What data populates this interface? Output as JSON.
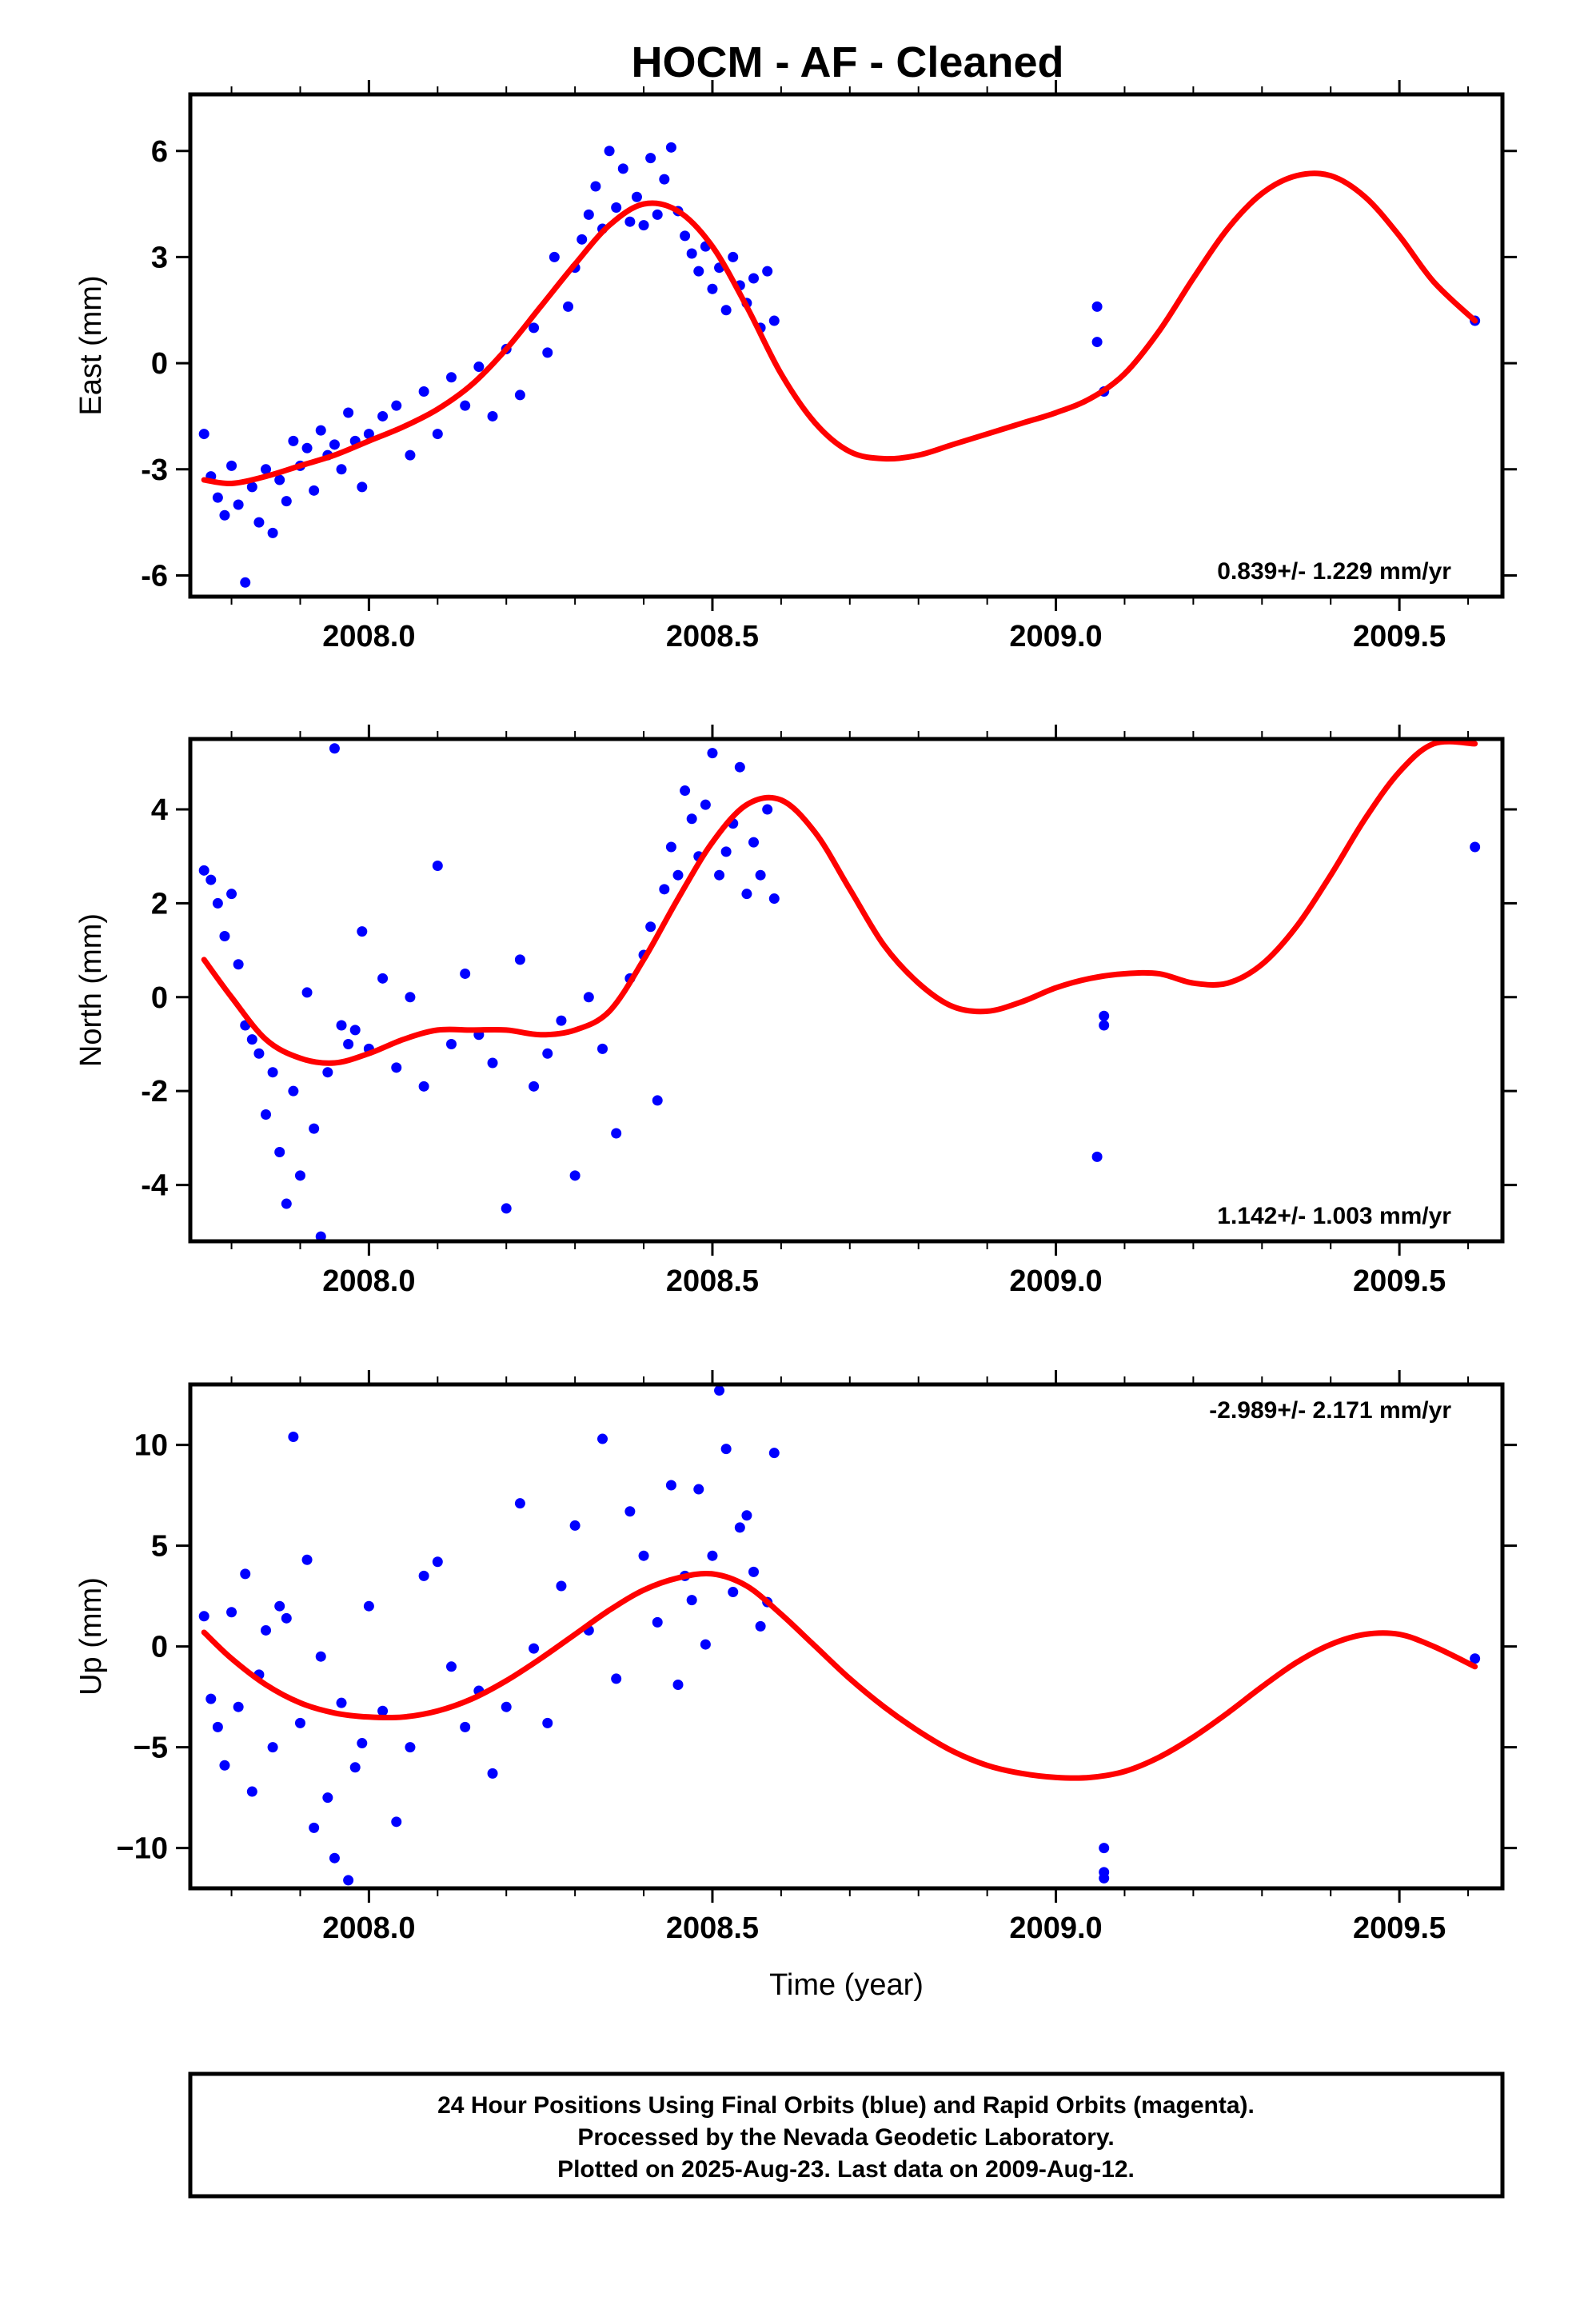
{
  "title": "HOCM  - AF - Cleaned",
  "footer": {
    "line1": "24 Hour Positions Using Final Orbits (blue) and Rapid Orbits (magenta).",
    "line2": "Processed by the Nevada Geodetic Laboratory.",
    "line3": "Plotted on 2025-Aug-23. Last data on 2009-Aug-12."
  },
  "colors": {
    "points": "#0000ff",
    "fit": "#ff0000",
    "axes": "#000000"
  },
  "chart_data": [
    {
      "type": "scatter",
      "title": "HOCM  - AF - Cleaned",
      "xlabel": "",
      "ylabel": "East (mm)",
      "xlim": [
        2007.74,
        2009.65
      ],
      "ylim": [
        -6.6,
        7.6
      ],
      "xticks": [
        2008.0,
        2008.5,
        2009.0,
        2009.5
      ],
      "xtick_labels": [
        "2008.0",
        "2008.5",
        "2009.0",
        "2009.5"
      ],
      "yticks": [
        -6,
        -3,
        0,
        3,
        6
      ],
      "ytick_labels": [
        "-6",
        "-3",
        "0",
        "3",
        "6"
      ],
      "rate_label": "0.839+/- 1.229 mm/yr",
      "series": [
        {
          "kind": "points",
          "x": [
            2007.76,
            2007.77,
            2007.78,
            2007.79,
            2007.8,
            2007.81,
            2007.82,
            2007.83,
            2007.84,
            2007.85,
            2007.86,
            2007.87,
            2007.88,
            2007.89,
            2007.9,
            2007.91,
            2007.92,
            2007.93,
            2007.94,
            2007.95,
            2007.96,
            2007.97,
            2007.98,
            2007.99,
            2008.0,
            2008.02,
            2008.04,
            2008.06,
            2008.08,
            2008.1,
            2008.12,
            2008.14,
            2008.16,
            2008.18,
            2008.2,
            2008.22,
            2008.24,
            2008.26,
            2008.27,
            2008.29,
            2008.3,
            2008.31,
            2008.32,
            2008.33,
            2008.34,
            2008.35,
            2008.36,
            2008.37,
            2008.38,
            2008.39,
            2008.4,
            2008.41,
            2008.42,
            2008.43,
            2008.44,
            2008.45,
            2008.46,
            2008.47,
            2008.48,
            2008.49,
            2008.5,
            2008.51,
            2008.52,
            2008.53,
            2008.54,
            2008.55,
            2008.56,
            2008.57,
            2008.58,
            2008.59,
            2009.06,
            2009.06,
            2009.07,
            2009.61
          ],
          "y": [
            -2.0,
            -3.2,
            -3.8,
            -4.3,
            -2.9,
            -4.0,
            -6.2,
            -3.5,
            -4.5,
            -3.0,
            -4.8,
            -3.3,
            -3.9,
            -2.2,
            -2.9,
            -2.4,
            -3.6,
            -1.9,
            -2.6,
            -2.3,
            -3.0,
            -1.4,
            -2.2,
            -3.5,
            -2.0,
            -1.5,
            -1.2,
            -2.6,
            -0.8,
            -2.0,
            -0.4,
            -1.2,
            -0.1,
            -1.5,
            0.4,
            -0.9,
            1.0,
            0.3,
            3.0,
            1.6,
            2.7,
            3.5,
            4.2,
            5.0,
            3.8,
            6.0,
            4.4,
            5.5,
            4.0,
            4.7,
            3.9,
            5.8,
            4.2,
            5.2,
            6.1,
            4.3,
            3.6,
            3.1,
            2.6,
            3.3,
            2.1,
            2.7,
            1.5,
            3.0,
            2.2,
            1.7,
            2.4,
            1.0,
            2.6,
            1.2,
            0.6,
            1.6,
            -0.8,
            1.2
          ]
        },
        {
          "kind": "fit",
          "x": [
            2007.76,
            2007.8,
            2007.85,
            2007.9,
            2007.95,
            2008.0,
            2008.05,
            2008.1,
            2008.15,
            2008.2,
            2008.25,
            2008.3,
            2008.35,
            2008.4,
            2008.45,
            2008.5,
            2008.55,
            2008.6,
            2008.65,
            2008.7,
            2008.75,
            2008.8,
            2008.85,
            2008.9,
            2008.95,
            2009.0,
            2009.05,
            2009.1,
            2009.15,
            2009.2,
            2009.25,
            2009.3,
            2009.35,
            2009.4,
            2009.45,
            2009.5,
            2009.55,
            2009.61
          ],
          "y": [
            -3.3,
            -3.4,
            -3.2,
            -2.9,
            -2.6,
            -2.2,
            -1.8,
            -1.3,
            -0.6,
            0.4,
            1.6,
            2.8,
            3.9,
            4.5,
            4.3,
            3.3,
            1.6,
            -0.3,
            -1.7,
            -2.5,
            -2.7,
            -2.6,
            -2.3,
            -2.0,
            -1.7,
            -1.4,
            -1.0,
            -0.3,
            0.9,
            2.4,
            3.8,
            4.8,
            5.3,
            5.3,
            4.7,
            3.6,
            2.3,
            1.2
          ]
        }
      ]
    },
    {
      "type": "scatter",
      "xlabel": "",
      "ylabel": "North (mm)",
      "xlim": [
        2007.74,
        2009.65
      ],
      "ylim": [
        -5.2,
        5.5
      ],
      "xticks": [
        2008.0,
        2008.5,
        2009.0,
        2009.5
      ],
      "xtick_labels": [
        "2008.0",
        "2008.5",
        "2009.0",
        "2009.5"
      ],
      "yticks": [
        -4,
        -2,
        0,
        2,
        4
      ],
      "ytick_labels": [
        "-4",
        "-2",
        "0",
        "2",
        "4"
      ],
      "rate_label": "1.142+/- 1.003 mm/yr",
      "series": [
        {
          "kind": "points",
          "x": [
            2007.76,
            2007.77,
            2007.78,
            2007.79,
            2007.8,
            2007.81,
            2007.82,
            2007.83,
            2007.84,
            2007.85,
            2007.86,
            2007.87,
            2007.88,
            2007.89,
            2007.9,
            2007.91,
            2007.92,
            2007.93,
            2007.94,
            2007.95,
            2007.96,
            2007.97,
            2007.98,
            2007.99,
            2008.0,
            2008.02,
            2008.04,
            2008.06,
            2008.08,
            2008.1,
            2008.12,
            2008.14,
            2008.16,
            2008.18,
            2008.2,
            2008.22,
            2008.24,
            2008.26,
            2008.28,
            2008.3,
            2008.32,
            2008.34,
            2008.36,
            2008.38,
            2008.4,
            2008.41,
            2008.42,
            2008.43,
            2008.44,
            2008.45,
            2008.46,
            2008.47,
            2008.48,
            2008.49,
            2008.5,
            2008.51,
            2008.52,
            2008.53,
            2008.54,
            2008.55,
            2008.56,
            2008.57,
            2008.58,
            2008.59,
            2009.07,
            2009.07,
            2009.06,
            2009.61
          ],
          "y": [
            2.7,
            2.5,
            2.0,
            1.3,
            2.2,
            0.7,
            -0.6,
            -0.9,
            -1.2,
            -2.5,
            -1.6,
            -3.3,
            -4.4,
            -2.0,
            -3.8,
            0.1,
            -2.8,
            -5.1,
            -1.6,
            5.3,
            -0.6,
            -1.0,
            -0.7,
            1.4,
            -1.1,
            0.4,
            -1.5,
            0.0,
            -1.9,
            2.8,
            -1.0,
            0.5,
            -0.8,
            -1.4,
            -4.5,
            0.8,
            -1.9,
            -1.2,
            -0.5,
            -3.8,
            0.0,
            -1.1,
            -2.9,
            0.4,
            0.9,
            1.5,
            -2.2,
            2.3,
            3.2,
            2.6,
            4.4,
            3.8,
            3.0,
            4.1,
            5.2,
            2.6,
            3.1,
            3.7,
            4.9,
            2.2,
            3.3,
            2.6,
            4.0,
            2.1,
            -0.6,
            -0.4,
            -3.4,
            3.2
          ]
        },
        {
          "kind": "fit",
          "x": [
            2007.76,
            2007.8,
            2007.85,
            2007.9,
            2007.95,
            2008.0,
            2008.05,
            2008.1,
            2008.15,
            2008.2,
            2008.25,
            2008.3,
            2008.35,
            2008.4,
            2008.45,
            2008.5,
            2008.55,
            2008.6,
            2008.65,
            2008.7,
            2008.75,
            2008.8,
            2008.85,
            2008.9,
            2008.95,
            2009.0,
            2009.05,
            2009.1,
            2009.15,
            2009.2,
            2009.25,
            2009.3,
            2009.35,
            2009.4,
            2009.45,
            2009.5,
            2009.55,
            2009.61
          ],
          "y": [
            0.8,
            0.0,
            -0.9,
            -1.3,
            -1.4,
            -1.2,
            -0.9,
            -0.7,
            -0.7,
            -0.7,
            -0.8,
            -0.7,
            -0.3,
            0.8,
            2.1,
            3.3,
            4.1,
            4.2,
            3.5,
            2.3,
            1.1,
            0.3,
            -0.2,
            -0.3,
            -0.1,
            0.2,
            0.4,
            0.5,
            0.5,
            0.3,
            0.3,
            0.7,
            1.5,
            2.6,
            3.8,
            4.8,
            5.4,
            5.4
          ]
        }
      ]
    },
    {
      "type": "scatter",
      "xlabel": "Time (year)",
      "ylabel": "Up (mm)",
      "xlim": [
        2007.74,
        2009.65
      ],
      "ylim": [
        -12,
        13
      ],
      "xticks": [
        2008.0,
        2008.5,
        2009.0,
        2009.5
      ],
      "xtick_labels": [
        "2008.0",
        "2008.5",
        "2009.0",
        "2009.5"
      ],
      "yticks": [
        -10,
        -5,
        0,
        5,
        10
      ],
      "ytick_labels": [
        "−10",
        "−5",
        "0",
        "5",
        "10"
      ],
      "rate_label": "-2.989+/- 2.171 mm/yr",
      "series": [
        {
          "kind": "points",
          "x": [
            2007.76,
            2007.77,
            2007.78,
            2007.79,
            2007.8,
            2007.81,
            2007.82,
            2007.83,
            2007.84,
            2007.85,
            2007.86,
            2007.87,
            2007.88,
            2007.89,
            2007.9,
            2007.91,
            2007.92,
            2007.93,
            2007.94,
            2007.95,
            2007.96,
            2007.97,
            2007.98,
            2007.99,
            2008.0,
            2008.02,
            2008.04,
            2008.06,
            2008.08,
            2008.1,
            2008.12,
            2008.14,
            2008.16,
            2008.18,
            2008.2,
            2008.22,
            2008.24,
            2008.26,
            2008.28,
            2008.3,
            2008.32,
            2008.34,
            2008.36,
            2008.38,
            2008.4,
            2008.42,
            2008.44,
            2008.45,
            2008.46,
            2008.47,
            2008.48,
            2008.49,
            2008.5,
            2008.51,
            2008.52,
            2008.53,
            2008.54,
            2008.55,
            2008.56,
            2008.57,
            2008.58,
            2008.59,
            2009.07,
            2009.07,
            2009.07,
            2009.61
          ],
          "y": [
            1.5,
            -2.6,
            -4.0,
            -5.9,
            1.7,
            -3.0,
            3.6,
            -7.2,
            -1.4,
            0.8,
            -5.0,
            2.0,
            1.4,
            10.4,
            -3.8,
            4.3,
            -9.0,
            -0.5,
            -7.5,
            -10.5,
            -2.8,
            -11.6,
            -6.0,
            -4.8,
            2.0,
            -3.2,
            -8.7,
            -5.0,
            3.5,
            4.2,
            -1.0,
            -4.0,
            -2.2,
            -6.3,
            -3.0,
            7.1,
            -0.1,
            -3.8,
            3.0,
            6.0,
            0.8,
            10.3,
            -1.6,
            6.7,
            4.5,
            1.2,
            8.0,
            -1.9,
            3.5,
            2.3,
            7.8,
            0.1,
            4.5,
            12.7,
            9.8,
            2.7,
            5.9,
            6.5,
            3.7,
            1.0,
            2.2,
            9.6,
            -10.0,
            -11.2,
            -11.5,
            -0.6
          ]
        },
        {
          "kind": "fit",
          "x": [
            2007.76,
            2007.8,
            2007.85,
            2007.9,
            2007.95,
            2008.0,
            2008.05,
            2008.1,
            2008.15,
            2008.2,
            2008.25,
            2008.3,
            2008.35,
            2008.4,
            2008.45,
            2008.5,
            2008.55,
            2008.6,
            2008.65,
            2008.7,
            2008.75,
            2008.8,
            2008.85,
            2008.9,
            2008.95,
            2009.0,
            2009.05,
            2009.1,
            2009.15,
            2009.2,
            2009.25,
            2009.3,
            2009.35,
            2009.4,
            2009.45,
            2009.5,
            2009.55,
            2009.61
          ],
          "y": [
            0.7,
            -0.6,
            -1.9,
            -2.8,
            -3.3,
            -3.5,
            -3.5,
            -3.2,
            -2.6,
            -1.7,
            -0.6,
            0.6,
            1.8,
            2.8,
            3.4,
            3.6,
            3.0,
            1.6,
            0.0,
            -1.6,
            -3.0,
            -4.2,
            -5.2,
            -5.9,
            -6.3,
            -6.5,
            -6.5,
            -6.2,
            -5.5,
            -4.5,
            -3.3,
            -2.0,
            -0.8,
            0.1,
            0.6,
            0.6,
            0.0,
            -1.0
          ]
        }
      ]
    }
  ]
}
